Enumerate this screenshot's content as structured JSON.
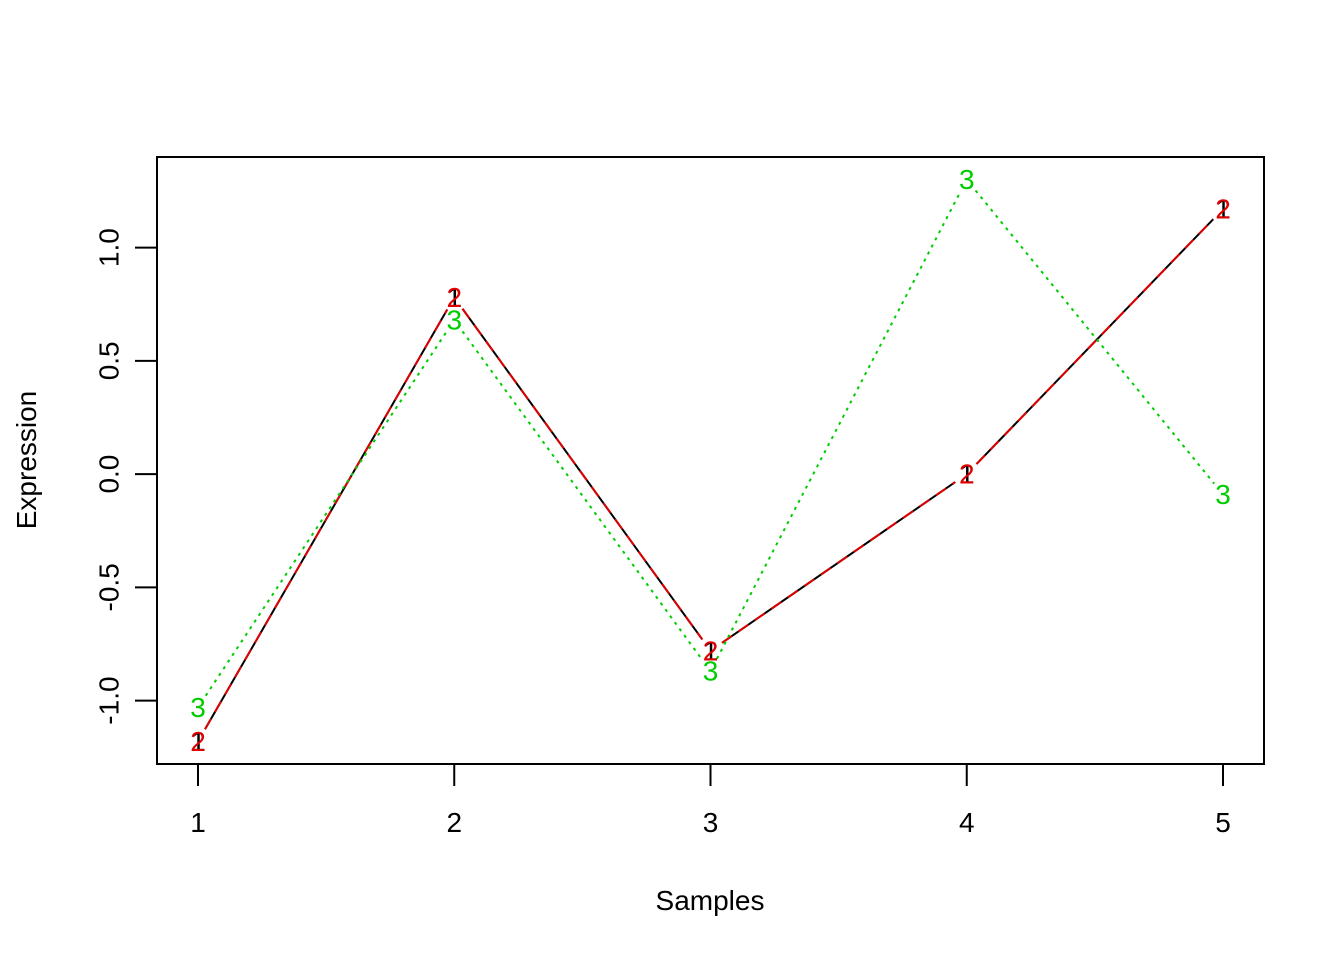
{
  "chart_data": {
    "type": "line",
    "title": "",
    "xlabel": "Samples",
    "ylabel": "Expression",
    "x": [
      1,
      2,
      3,
      4,
      5
    ],
    "xlim": [
      0.84,
      5.16
    ],
    "ylim": [
      -1.28,
      1.4
    ],
    "x_ticks": [
      "1",
      "2",
      "3",
      "4",
      "5"
    ],
    "y_ticks": [
      {
        "value": -1.0,
        "label": "-1.0"
      },
      {
        "value": -0.5,
        "label": "-0.5"
      },
      {
        "value": 0.0,
        "label": "0.0"
      },
      {
        "value": 0.5,
        "label": "0.5"
      },
      {
        "value": 1.0,
        "label": "1.0"
      }
    ],
    "grid": false,
    "legend": "none",
    "series": [
      {
        "marker": "1",
        "color": "#000000",
        "linestyle": "solid",
        "values": [
          -1.18,
          0.78,
          -0.78,
          0.0,
          1.17
        ]
      },
      {
        "marker": "2",
        "color": "#DF0000",
        "linestyle": "dashed",
        "values": [
          -1.18,
          0.78,
          -0.78,
          0.0,
          1.17
        ]
      },
      {
        "marker": "3",
        "color": "#00CD00",
        "linestyle": "dotted",
        "values": [
          -1.03,
          0.68,
          -0.87,
          1.3,
          -0.09
        ]
      }
    ]
  }
}
